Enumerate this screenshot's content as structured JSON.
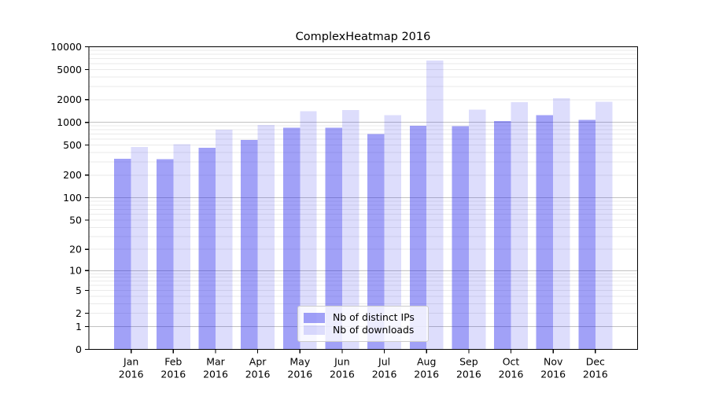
{
  "chart_data": {
    "type": "bar",
    "title": "ComplexHeatmap 2016",
    "scale": "log10(1+x)",
    "grid": true,
    "legend_position": "lower center",
    "categories": [
      "Jan",
      "Feb",
      "Mar",
      "Apr",
      "May",
      "Jun",
      "Jul",
      "Aug",
      "Sep",
      "Oct",
      "Nov",
      "Dec"
    ],
    "year_label": "2016",
    "series": [
      {
        "name": "Nb of distinct IPs",
        "key": "distinct-ips",
        "values": [
          330,
          325,
          460,
          585,
          855,
          845,
          700,
          905,
          890,
          1040,
          1245,
          1085
        ]
      },
      {
        "name": "Nb of downloads",
        "key": "downloads",
        "values": [
          472,
          515,
          800,
          920,
          1400,
          1450,
          1240,
          6590,
          1470,
          1855,
          2090,
          1870
        ]
      }
    ],
    "ylim": [
      0,
      10000
    ],
    "yticks": [
      {
        "v": 10000,
        "label": "10000"
      },
      {
        "v": 5000,
        "label": "5000"
      },
      {
        "v": 2000,
        "label": "2000"
      },
      {
        "v": 1000,
        "label": "1000"
      },
      {
        "v": 500,
        "label": "500"
      },
      {
        "v": 200,
        "label": "200"
      },
      {
        "v": 100,
        "label": "100"
      },
      {
        "v": 50,
        "label": "50"
      },
      {
        "v": 20,
        "label": "20"
      },
      {
        "v": 10,
        "label": "10"
      },
      {
        "v": 5,
        "label": "5"
      },
      {
        "v": 2,
        "label": "2"
      },
      {
        "v": 1,
        "label": "1"
      },
      {
        "v": 0,
        "label": "0"
      }
    ],
    "colors": {
      "distinct_ips": "rgba(30,30,235,0.42)",
      "downloads": "rgba(30,30,235,0.15)",
      "grid_minor": "#eaeaea",
      "grid_major": "#c2c2c2",
      "axis": "#000000",
      "background": "#ffffff"
    }
  }
}
